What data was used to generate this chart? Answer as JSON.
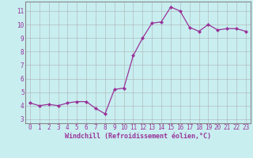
{
  "x": [
    0,
    1,
    2,
    3,
    4,
    5,
    6,
    7,
    8,
    9,
    10,
    11,
    12,
    13,
    14,
    15,
    16,
    17,
    18,
    19,
    20,
    21,
    22,
    23
  ],
  "y": [
    4.2,
    4.0,
    4.1,
    4.0,
    4.2,
    4.3,
    4.3,
    3.8,
    3.4,
    5.2,
    5.3,
    7.7,
    9.0,
    10.1,
    10.2,
    11.3,
    11.0,
    9.8,
    9.5,
    10.0,
    9.6,
    9.7,
    9.7,
    9.5
  ],
  "line_color": "#993399",
  "marker": "D",
  "markersize": 2.0,
  "linewidth": 0.9,
  "xlabel": "Windchill (Refroidissement éolien,°C)",
  "xlabel_fontsize": 6.0,
  "xlabel_color": "#993399",
  "xtick_labels": [
    "0",
    "1",
    "2",
    "3",
    "4",
    "5",
    "6",
    "7",
    "8",
    "9",
    "10",
    "11",
    "12",
    "13",
    "14",
    "15",
    "16",
    "17",
    "18",
    "19",
    "20",
    "21",
    "22",
    "23"
  ],
  "ytick_values": [
    3,
    4,
    5,
    6,
    7,
    8,
    9,
    10,
    11
  ],
  "ylim": [
    2.7,
    11.7
  ],
  "xlim": [
    -0.5,
    23.5
  ],
  "bg_color": "#c8eef0",
  "grid_color": "#aaaaaa",
  "spine_color": "#888888",
  "tick_color": "#993399",
  "tick_fontsize": 5.5
}
